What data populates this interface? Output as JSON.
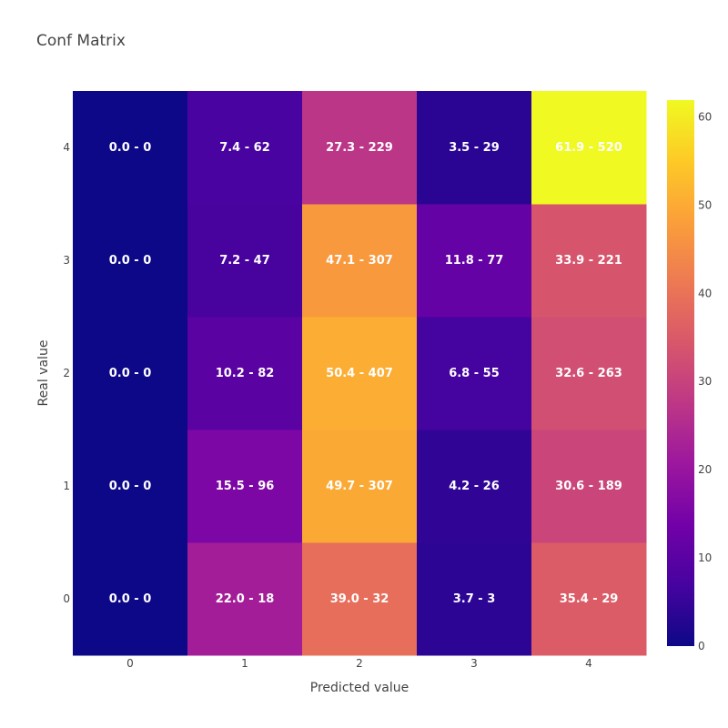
{
  "chart_data": {
    "type": "heatmap",
    "title": "Conf Matrix",
    "xlabel": "Predicted value",
    "ylabel": "Real value",
    "x_categories": [
      "0",
      "1",
      "2",
      "3",
      "4"
    ],
    "y_categories": [
      "0",
      "1",
      "2",
      "3",
      "4"
    ],
    "values": [
      [
        0.0,
        22.0,
        39.0,
        3.7,
        35.4
      ],
      [
        0.0,
        15.5,
        49.7,
        4.2,
        30.6
      ],
      [
        0.0,
        10.2,
        50.4,
        6.8,
        32.6
      ],
      [
        0.0,
        7.2,
        47.1,
        11.8,
        33.9
      ],
      [
        0.0,
        7.4,
        27.3,
        3.5,
        61.9
      ]
    ],
    "labels": [
      [
        "0.0 - 0",
        "22.0 - 18",
        "39.0 - 32",
        "3.7 - 3",
        "35.4 - 29"
      ],
      [
        "0.0 - 0",
        "15.5 - 96",
        "49.7 - 307",
        "4.2 - 26",
        "30.6 - 189"
      ],
      [
        "0.0 - 0",
        "10.2 - 82",
        "50.4 - 407",
        "6.8 - 55",
        "32.6 - 263"
      ],
      [
        "0.0 - 0",
        "7.2 - 47",
        "47.1 - 307",
        "11.8 - 77",
        "33.9 - 221"
      ],
      [
        "0.0 - 0",
        "7.4 - 62",
        "27.3 - 229",
        "3.5 - 29",
        "61.9 - 520"
      ]
    ],
    "zrange": [
      0,
      61.9
    ],
    "colorbar_ticks": [
      0,
      10,
      20,
      30,
      40,
      50,
      60
    ],
    "colorscale": [
      "#0d0887",
      "#46039f",
      "#7201a8",
      "#9c179e",
      "#bd3786",
      "#d8576b",
      "#ed7953",
      "#fb9f3a",
      "#fdca26",
      "#f0f921"
    ],
    "grid": false
  }
}
